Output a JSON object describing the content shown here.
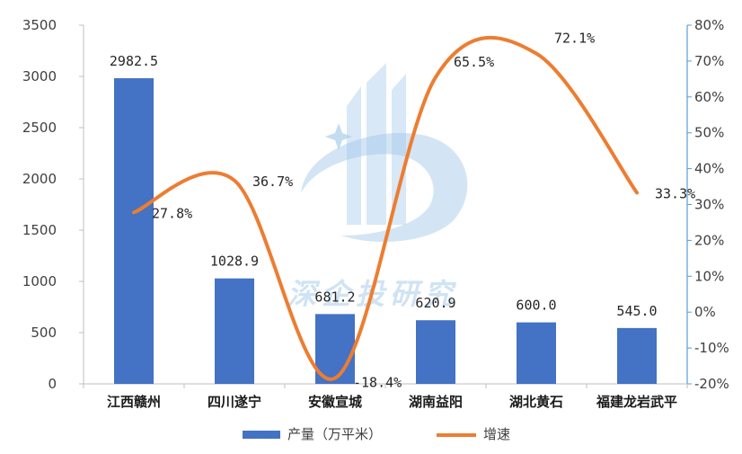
{
  "chart_data": {
    "type": "bar+line",
    "title": "",
    "categories": [
      "江西赣州",
      "四川遂宁",
      "安徽宣城",
      "湖南益阳",
      "湖北黄石",
      "福建龙岩武平"
    ],
    "series": [
      {
        "name": "产量（万平米）",
        "type": "bar",
        "axis": "left",
        "color": "#4472c4",
        "values": [
          2982.5,
          1028.9,
          681.2,
          620.9,
          600.0,
          545.0
        ],
        "labels": [
          "2982.5",
          "1028.9",
          "681.2",
          "620.9",
          "600.0",
          "545.0"
        ]
      },
      {
        "name": "增速",
        "type": "line",
        "axis": "right",
        "color": "#ed7d31",
        "smooth": true,
        "values": [
          27.8,
          36.7,
          -18.4,
          65.5,
          72.1,
          33.3
        ],
        "labels": [
          "27.8%",
          "36.7%",
          "-18.4%",
          "65.5%",
          "72.1%",
          "33.3%"
        ]
      }
    ],
    "y_left": {
      "min": 0,
      "max": 3500,
      "step": 500,
      "ticks": [
        "0",
        "500",
        "1000",
        "1500",
        "2000",
        "2500",
        "3000",
        "3500"
      ]
    },
    "y_right": {
      "min": -20,
      "max": 80,
      "step": 10,
      "ticks": [
        "-20%",
        "-10%",
        "0%",
        "10%",
        "20%",
        "30%",
        "40%",
        "50%",
        "60%",
        "70%",
        "80%"
      ]
    },
    "grid": false,
    "legend_position": "bottom"
  },
  "watermark": {
    "text": "深企投研究"
  }
}
